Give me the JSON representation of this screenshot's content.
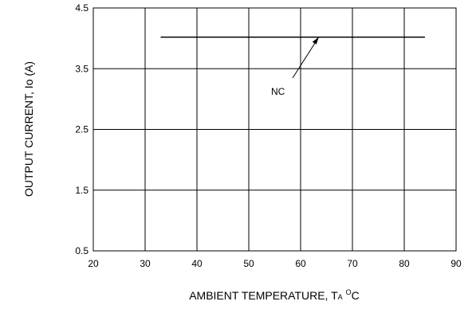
{
  "chart_data": {
    "type": "line",
    "title": "",
    "xlabel": "AMBIENT TEMPERATURE, T",
    "xlabel_sub": "A",
    "xlabel_sup": "O",
    "xlabel_tail": "C",
    "ylabel": "OUTPUT CURRENT, Io  (A)",
    "xlim": [
      20,
      90
    ],
    "ylim": [
      0.5,
      4.5
    ],
    "x_ticks": [
      "20",
      "30",
      "40",
      "50",
      "60",
      "70",
      "80",
      "90"
    ],
    "y_ticks": [
      "0.5",
      "1.5",
      "2.5",
      "3.5",
      "4.5"
    ],
    "grid": true,
    "legend": "none",
    "series": [
      {
        "name": "NC",
        "x": [
          33,
          84
        ],
        "y": [
          4.02,
          4.02
        ]
      }
    ],
    "annotations": [
      {
        "text": "NC",
        "points_to": [
          63.5,
          4.02
        ]
      }
    ]
  }
}
